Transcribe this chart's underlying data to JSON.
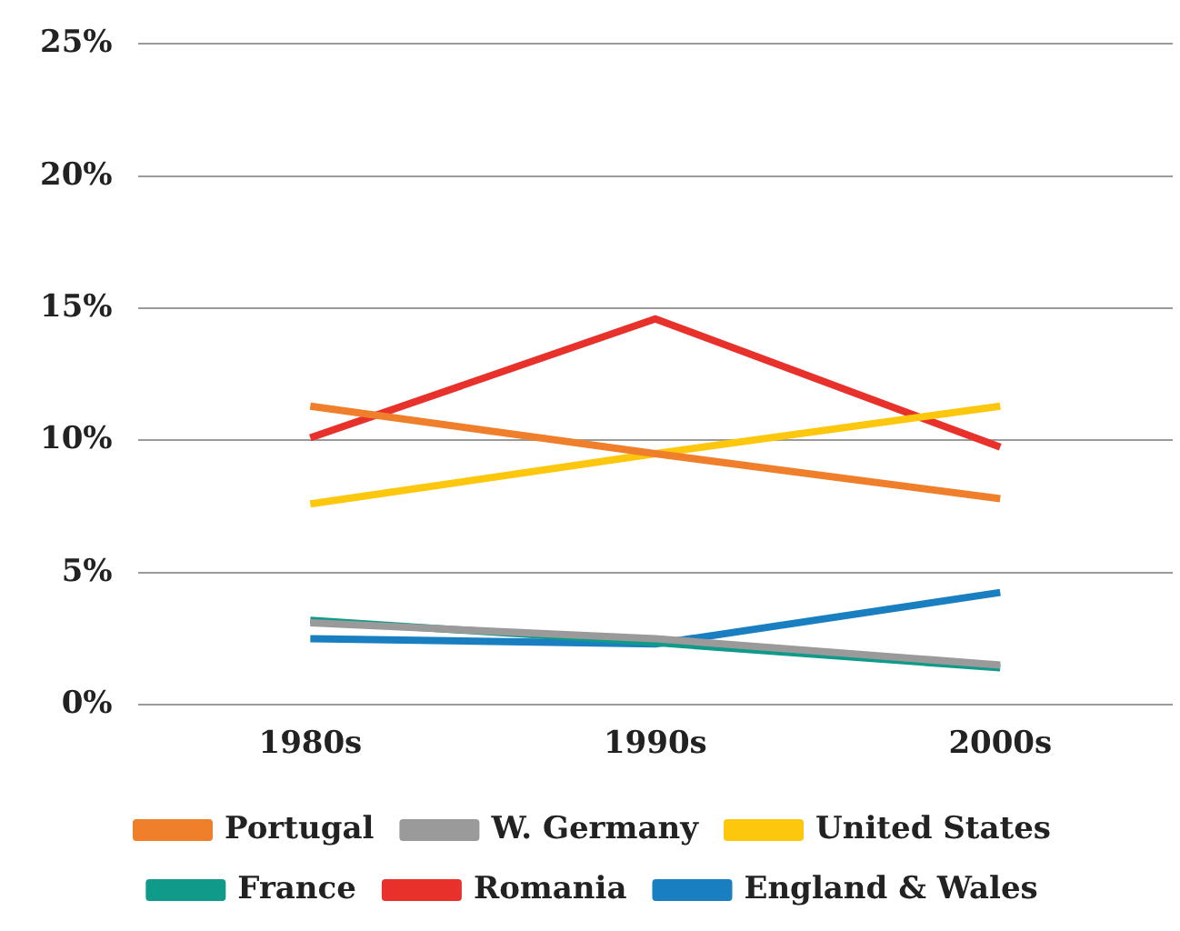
{
  "chart_data": {
    "type": "line",
    "categories": [
      "1980s",
      "1990s",
      "2000s"
    ],
    "series": [
      {
        "name": "Portugal",
        "color": "#f07f2c",
        "values": [
          11.3,
          9.5,
          7.8
        ]
      },
      {
        "name": "W. Germany",
        "color": "#9a9a9a",
        "values": [
          3.1,
          2.5,
          1.5
        ]
      },
      {
        "name": "United States",
        "color": "#fdc70e",
        "values": [
          7.6,
          9.5,
          11.3
        ]
      },
      {
        "name": "France",
        "color": "#0f9a8a",
        "values": [
          3.2,
          2.35,
          1.4
        ]
      },
      {
        "name": "Romania",
        "color": "#e8312a",
        "values": [
          10.1,
          14.6,
          9.75
        ]
      },
      {
        "name": "England & Wales",
        "color": "#1a7fc1",
        "values": [
          2.5,
          2.3,
          4.25
        ]
      }
    ],
    "ylim": [
      0,
      25
    ],
    "yticks": [
      {
        "value": 0,
        "label": "0%"
      },
      {
        "value": 5,
        "label": "5%"
      },
      {
        "value": 10,
        "label": "10%"
      },
      {
        "value": 15,
        "label": "15%"
      },
      {
        "value": 20,
        "label": "20%"
      },
      {
        "value": 25,
        "label": "25%"
      }
    ],
    "grid": "y",
    "legend": "bottom",
    "marker": "none",
    "line_style": "solid"
  }
}
